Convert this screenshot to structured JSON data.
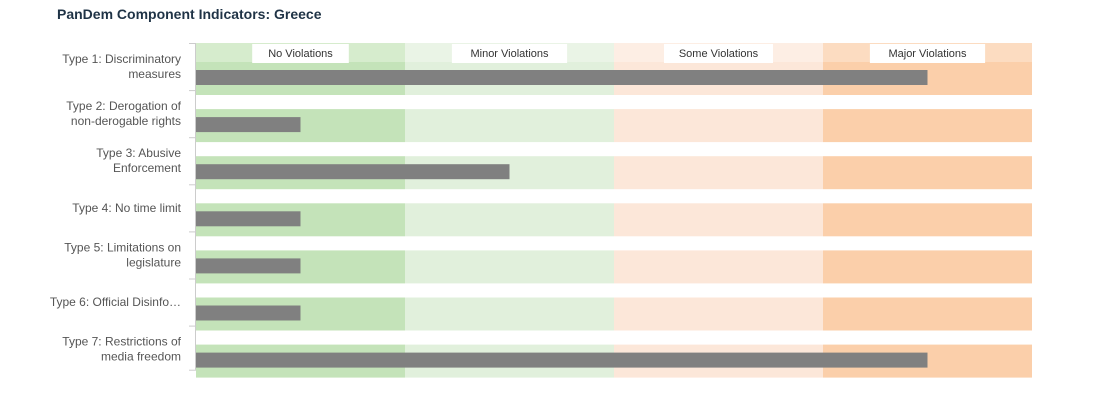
{
  "title": "PanDem Component Indicators: Greece",
  "chart_data": {
    "type": "bar",
    "orientation": "horizontal",
    "title": "PanDem Component Indicators: Greece",
    "bands": [
      {
        "label": "No Violations",
        "range": [
          0,
          1
        ],
        "color": "#c4e3b9",
        "color_light": "#d6eccd"
      },
      {
        "label": "Minor Violations",
        "range": [
          1,
          2
        ],
        "color": "#e1f0dc",
        "color_light": "#eaf4e6"
      },
      {
        "label": "Some Violations",
        "range": [
          2,
          3
        ],
        "color": "#fce7d9",
        "color_light": "#fdeee4"
      },
      {
        "label": "Major Violations",
        "range": [
          3,
          4
        ],
        "color": "#fbcfaa",
        "color_light": "#fcdcc1"
      }
    ],
    "categories": [
      [
        "Type 1: Discriminatory",
        "measures"
      ],
      [
        "Type 2: Derogation of",
        "non-derogable rights"
      ],
      [
        "Type 3: Abusive",
        "Enforcement"
      ],
      [
        "Type 4: No time limit"
      ],
      [
        "Type 5: Limitations on",
        "legislature"
      ],
      [
        "Type 6: Official Disinfo…"
      ],
      [
        "Type 7: Restrictions of",
        "media freedom"
      ]
    ],
    "values": [
      3.5,
      0.5,
      1.5,
      0.5,
      0.5,
      0.5,
      3.5
    ],
    "xlim": [
      0,
      4
    ],
    "bar_color": "#808080"
  }
}
